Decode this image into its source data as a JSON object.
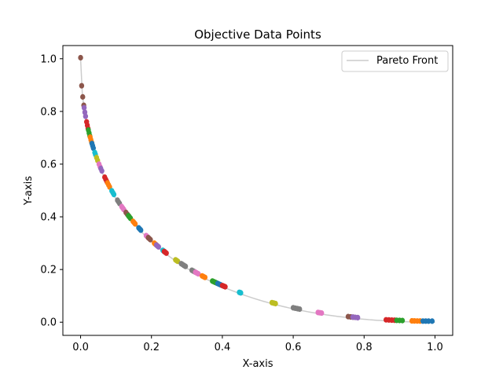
{
  "chart_data": {
    "type": "scatter",
    "title": "Objective Data Points",
    "xlabel": "X-axis",
    "ylabel": "Y-axis",
    "xlim": [
      -0.05,
      1.05
    ],
    "ylim": [
      -0.05,
      1.05
    ],
    "xticks": [
      0.0,
      0.2,
      0.4,
      0.6,
      0.8,
      1.0
    ],
    "yticks": [
      0.0,
      0.2,
      0.4,
      0.6,
      0.8,
      1.0
    ],
    "xtick_labels": [
      "0.0",
      "0.2",
      "0.4",
      "0.6",
      "0.8",
      "1.0"
    ],
    "ytick_labels": [
      "0.0",
      "0.2",
      "0.4",
      "0.6",
      "0.8",
      "1.0"
    ],
    "grid": false,
    "legend": {
      "placement": "top-right",
      "entries": [
        "Pareto Front"
      ]
    },
    "pareto_front": {
      "name": "Pareto Front",
      "color": "#cccccc"
    },
    "palette": [
      "#1f77b4",
      "#ff7f0e",
      "#2ca02c",
      "#d62728",
      "#9467bd",
      "#8c564b",
      "#e377c2",
      "#7f7f7f",
      "#bcbd22",
      "#17becf"
    ],
    "clusters": [
      {
        "x": [
          0.0,
          0.003,
          0.006,
          0.009
        ],
        "color": "#8c564b"
      },
      {
        "x": [
          0.01,
          0.012,
          0.014
        ],
        "color": "#9467bd"
      },
      {
        "x": [
          0.017,
          0.019,
          0.021
        ],
        "color": "#d62728"
      },
      {
        "x": [
          0.022,
          0.024,
          0.026
        ],
        "color": "#2ca02c"
      },
      {
        "x": [
          0.027,
          0.029,
          0.031
        ],
        "color": "#ff7f0e"
      },
      {
        "x": [
          0.032,
          0.034,
          0.036
        ],
        "color": "#1f77b4"
      },
      {
        "x": [
          0.04,
          0.042
        ],
        "color": "#17becf"
      },
      {
        "x": [
          0.045,
          0.048
        ],
        "color": "#bcbd22"
      },
      {
        "x": [
          0.052,
          0.055
        ],
        "color": "#e377c2"
      },
      {
        "x": [
          0.057,
          0.06
        ],
        "color": "#9467bd"
      },
      {
        "x": [
          0.068,
          0.071,
          0.074
        ],
        "color": "#d62728"
      },
      {
        "x": [
          0.076,
          0.079,
          0.082
        ],
        "color": "#ff7f0e"
      },
      {
        "x": [
          0.088,
          0.091,
          0.094
        ],
        "color": "#17becf"
      },
      {
        "x": [
          0.104,
          0.107,
          0.11
        ],
        "color": "#7f7f7f"
      },
      {
        "x": [
          0.116,
          0.119,
          0.122
        ],
        "color": "#e377c2"
      },
      {
        "x": [
          0.128,
          0.132,
          0.136,
          0.14
        ],
        "color": "#8c564b"
      },
      {
        "x": [
          0.135,
          0.138,
          0.141
        ],
        "color": "#2ca02c"
      },
      {
        "x": [
          0.148,
          0.151,
          0.154
        ],
        "color": "#ff7f0e"
      },
      {
        "x": [
          0.164,
          0.167,
          0.17
        ],
        "color": "#1f77b4"
      },
      {
        "x": [
          0.185,
          0.188,
          0.191
        ],
        "color": "#e377c2"
      },
      {
        "x": [
          0.191,
          0.194,
          0.197
        ],
        "color": "#8c564b"
      },
      {
        "x": [
          0.208,
          0.211,
          0.214
        ],
        "color": "#ff7f0e"
      },
      {
        "x": [
          0.214,
          0.217,
          0.22
        ],
        "color": "#9467bd"
      },
      {
        "x": [
          0.232,
          0.235,
          0.238
        ],
        "color": "#17becf"
      },
      {
        "x": [
          0.236,
          0.239,
          0.242
        ],
        "color": "#d62728"
      },
      {
        "x": [
          0.268,
          0.271,
          0.274
        ],
        "color": "#bcbd22"
      },
      {
        "x": [
          0.284,
          0.288,
          0.292,
          0.296
        ],
        "color": "#7f7f7f"
      },
      {
        "x": [
          0.314,
          0.318,
          0.322
        ],
        "color": "#7f7f7f"
      },
      {
        "x": [
          0.324,
          0.328,
          0.332
        ],
        "color": "#e377c2"
      },
      {
        "x": [
          0.343,
          0.347,
          0.351
        ],
        "color": "#ff7f0e"
      },
      {
        "x": [
          0.372,
          0.376,
          0.38,
          0.384
        ],
        "color": "#2ca02c"
      },
      {
        "x": [
          0.387,
          0.391,
          0.395
        ],
        "color": "#1f77b4"
      },
      {
        "x": [
          0.4,
          0.404,
          0.408
        ],
        "color": "#d62728"
      },
      {
        "x": [
          0.448,
          0.45,
          0.452
        ],
        "color": "#17becf"
      },
      {
        "x": [
          0.54,
          0.545,
          0.55
        ],
        "color": "#bcbd22"
      },
      {
        "x": [
          0.6,
          0.606,
          0.612,
          0.618
        ],
        "color": "#7f7f7f"
      },
      {
        "x": [
          0.67,
          0.675,
          0.68
        ],
        "color": "#e377c2"
      },
      {
        "x": [
          0.755,
          0.762,
          0.769
        ],
        "color": "#8c564b"
      },
      {
        "x": [
          0.768,
          0.775,
          0.782
        ],
        "color": "#9467bd"
      },
      {
        "x": [
          0.862,
          0.87,
          0.878,
          0.886
        ],
        "color": "#d62728"
      },
      {
        "x": [
          0.892,
          0.9,
          0.908
        ],
        "color": "#2ca02c"
      },
      {
        "x": [
          0.935,
          0.942,
          0.95,
          0.958
        ],
        "color": "#ff7f0e"
      },
      {
        "x": [
          0.966,
          0.974,
          0.982,
          0.992
        ],
        "color": "#1f77b4"
      }
    ]
  }
}
